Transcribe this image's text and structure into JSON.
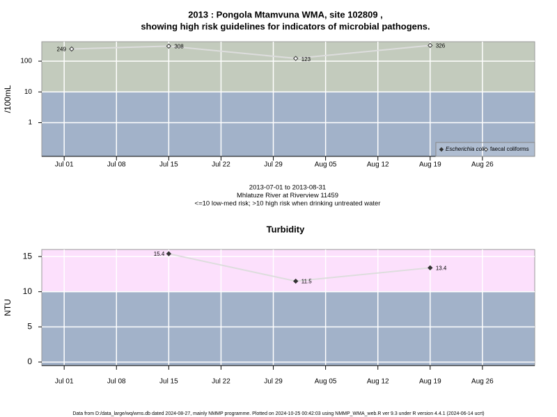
{
  "chart_data": [
    {
      "type": "line",
      "title": [
        "2013 : Pongola Mtamvuna WMA, site 102809 ,",
        "showing high risk guidelines for indicators of microbial pathogens."
      ],
      "ylabel": "/100mL",
      "log_scale": true,
      "ylim": [
        0.08,
        430
      ],
      "yticks": [
        1,
        10,
        100
      ],
      "xlim": [
        "Jun 28",
        "Sep 02"
      ],
      "xticks": [
        "Jul 01",
        "Jul 08",
        "Jul 15",
        "Jul 22",
        "Jul 29",
        "Aug 05",
        "Aug 12",
        "Aug 19",
        "Aug 26"
      ],
      "threshold": 10,
      "band_colors": {
        "above": "#c3cbbd",
        "below": "#a2b2c9"
      },
      "grid": true,
      "legend": "bottom-right",
      "series": [
        {
          "name": "Escherichia coli",
          "color": "#333333",
          "marker": "filled-diamond",
          "x": [],
          "values": []
        },
        {
          "name": "faecal coliforms",
          "color": "#dddddd",
          "marker": "open-diamond",
          "x": [
            "Jul 02",
            "Jul 15",
            "Aug 01",
            "Aug 19"
          ],
          "values": [
            249,
            308,
            123,
            326
          ]
        }
      ],
      "notes": [
        "2013-07-01 to 2013-08-31",
        "Mhlatuze River at Riverview 11459",
        "<=10 low-med risk; >10 high risk when drinking untreated water"
      ]
    },
    {
      "type": "line",
      "title": [
        "Turbidity"
      ],
      "ylabel": "NTU",
      "log_scale": false,
      "ylim": [
        -0.5,
        16
      ],
      "yticks": [
        0,
        5,
        10,
        15
      ],
      "xlim": [
        "Jun 28",
        "Sep 02"
      ],
      "xticks": [
        "Jul 01",
        "Jul 08",
        "Jul 15",
        "Jul 22",
        "Jul 29",
        "Aug 05",
        "Aug 12",
        "Aug 19",
        "Aug 26"
      ],
      "threshold": 10,
      "band_colors": {
        "above": "#fce0fc",
        "below": "#a2b2c9"
      },
      "grid": true,
      "series": [
        {
          "color": "#dddddd",
          "marker": "filled-diamond",
          "x": [
            "Jul 15",
            "Aug 01",
            "Aug 19"
          ],
          "values": [
            15.4,
            11.5,
            13.4
          ]
        }
      ]
    }
  ],
  "footer": "Data from D:/data_large/wq/wms.db dated 2024-08-27, mainly NMMP programme. Plotted on 2024-10-25 00:42:03 using NMMP_WMA_web.R ver 9.3 under R version 4.4.1 (2024-06-14 ucrt)"
}
